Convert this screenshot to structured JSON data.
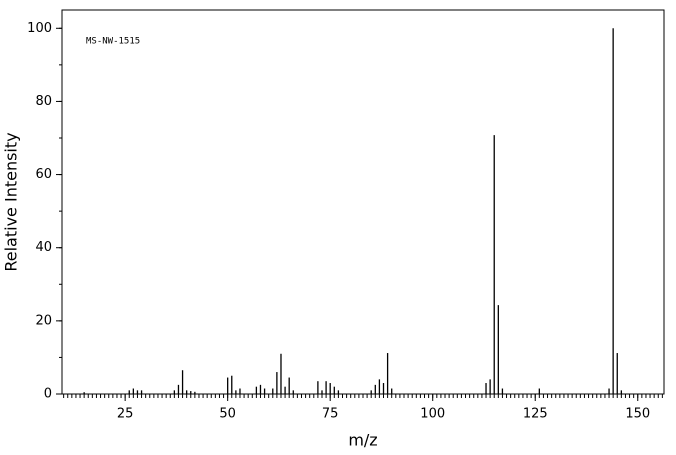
{
  "chart_data": {
    "type": "bar",
    "annotation": "MS-NW-1515",
    "x_label": "m/z",
    "y_label": "Relative Intensity",
    "x": [
      15,
      26,
      27,
      28,
      29,
      37,
      38,
      39,
      40,
      41,
      42,
      50,
      51,
      52,
      53,
      57,
      58,
      59,
      61,
      62,
      63,
      64,
      65,
      66,
      72,
      73,
      74,
      75,
      76,
      77,
      85,
      86,
      87,
      88,
      89,
      90,
      113,
      114,
      115,
      116,
      117,
      126,
      143,
      144,
      145,
      146
    ],
    "values": [
      0.5,
      1,
      1.5,
      1,
      1,
      1,
      2.5,
      6.5,
      1,
      0.8,
      0.6,
      4.5,
      5,
      1,
      1.5,
      2,
      2.5,
      1.5,
      1.5,
      6,
      11,
      2,
      4.5,
      1,
      3.5,
      1,
      3.5,
      3,
      2,
      1,
      1,
      2.5,
      4,
      3,
      11.2,
      1.5,
      3,
      4,
      70.8,
      24.3,
      1.5,
      1.5,
      1.5,
      100,
      11.2,
      1
    ],
    "color": "#000000",
    "xlim": [
      9.6,
      156.4
    ],
    "ylim": [
      0,
      105
    ],
    "xticks": [
      25,
      50,
      75,
      100,
      125,
      150
    ],
    "yticks": [
      0,
      20,
      40,
      60,
      80,
      100
    ]
  }
}
